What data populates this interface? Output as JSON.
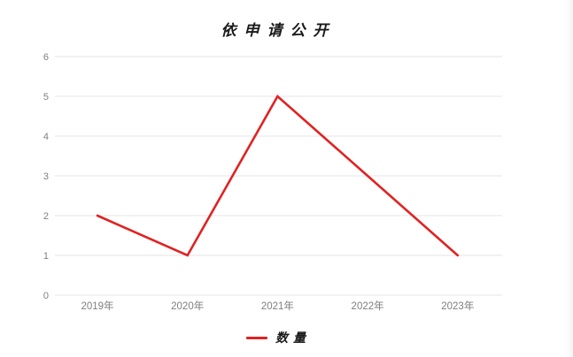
{
  "chart_data": {
    "type": "line",
    "title": "依申请公开",
    "categories": [
      "2019年",
      "2020年",
      "2021年",
      "2022年",
      "2023年"
    ],
    "series": [
      {
        "name": "数量",
        "values": [
          2,
          1,
          5,
          3,
          1
        ],
        "color": "#e02222"
      }
    ],
    "xlabel": "",
    "ylabel": "",
    "ylim": [
      0,
      6
    ],
    "ytick_step": 1,
    "yticks": [
      0,
      1,
      2,
      3,
      4,
      5,
      6
    ],
    "grid": "horizontal",
    "legend_position": "bottom",
    "legend_entries": [
      "数量"
    ]
  },
  "legend": {
    "label": "数量"
  },
  "colors": {
    "line": "#e02222",
    "grid": "#e4e4e4",
    "tick_label": "#7f7f7f",
    "title": "#1a1a1a",
    "background": "#ffffff"
  }
}
